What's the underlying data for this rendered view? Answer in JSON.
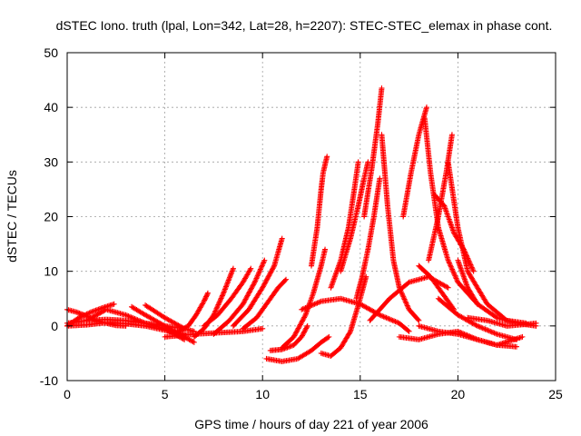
{
  "chart_data": {
    "type": "scatter",
    "title": "dSTEC Iono. truth (lpal, Lon=342, Lat=28, h=2207): STEC-STEC_elemax in phase cont.",
    "xlabel": "GPS time / hours of day 221 of year 2006",
    "ylabel": "dSTEC  / TECUs",
    "xlim": [
      0,
      25
    ],
    "ylim": [
      -10,
      50
    ],
    "x_ticks": [
      0,
      5,
      10,
      15,
      20,
      25
    ],
    "y_ticks": [
      -10,
      0,
      10,
      20,
      30,
      40,
      50
    ],
    "x_tick_labels": [
      "0",
      "5",
      "10",
      "15",
      "20",
      "25"
    ],
    "y_tick_labels": [
      "-10",
      "0",
      "10",
      "20",
      "30",
      "40",
      "50"
    ],
    "grid": true,
    "marker": "+",
    "marker_color": "#ff0000",
    "series": [
      {
        "x": [
          0.0,
          0.5,
          1.0,
          1.5,
          2.0,
          2.5,
          3.0
        ],
        "y": [
          3.0,
          2.5,
          1.8,
          1.0,
          0.5,
          0.1,
          0.0
        ]
      },
      {
        "x": [
          0.0,
          0.6,
          1.2,
          1.8,
          2.4
        ],
        "y": [
          0.0,
          1.5,
          2.5,
          3.3,
          4.0
        ]
      },
      {
        "x": [
          0.0,
          1.0,
          2.0,
          3.0,
          4.0,
          5.0,
          6.0
        ],
        "y": [
          0.0,
          0.2,
          0.6,
          0.4,
          0.0,
          -0.8,
          -1.5
        ]
      },
      {
        "x": [
          1.0,
          2.0,
          3.0,
          4.0,
          5.0,
          6.0
        ],
        "y": [
          1.0,
          3.0,
          2.0,
          0.5,
          -0.5,
          -2.5
        ]
      },
      {
        "x": [
          3.3,
          4.0,
          5.0,
          6.0,
          6.5
        ],
        "y": [
          3.5,
          2.0,
          0.0,
          -2.0,
          -3.0
        ]
      },
      {
        "x": [
          4.0,
          5.0,
          6.0,
          6.5
        ],
        "y": [
          3.8,
          1.5,
          -0.5,
          -1.0
        ]
      },
      {
        "x": [
          0.0,
          1.0,
          2.0,
          3.0,
          4.0,
          5.0,
          6.0
        ],
        "y": [
          0.5,
          1.0,
          1.2,
          1.0,
          0.5,
          0.0,
          -0.5
        ]
      },
      {
        "x": [
          5.7,
          6.2,
          6.6,
          7.0,
          7.2
        ],
        "y": [
          -1.0,
          0.0,
          2.0,
          4.5,
          6.0
        ]
      },
      {
        "x": [
          6.5,
          7.0,
          7.5,
          8.0,
          8.5
        ],
        "y": [
          -2.0,
          -0.5,
          2.0,
          6.0,
          10.5
        ]
      },
      {
        "x": [
          7.0,
          7.7,
          8.4,
          9.0,
          9.4
        ],
        "y": [
          0.0,
          2.0,
          5.0,
          8.0,
          10.5
        ]
      },
      {
        "x": [
          7.5,
          8.3,
          9.0,
          9.6,
          10.1
        ],
        "y": [
          -1.5,
          1.0,
          4.0,
          8.0,
          12.0
        ]
      },
      {
        "x": [
          8.5,
          9.3,
          10.0,
          10.6,
          11.0
        ],
        "y": [
          0.0,
          3.0,
          7.0,
          11.0,
          16.0
        ]
      },
      {
        "x": [
          9.0,
          9.7,
          10.3,
          10.8,
          11.2
        ],
        "y": [
          -0.5,
          1.5,
          4.5,
          7.0,
          8.5
        ]
      },
      {
        "x": [
          5.0,
          6.5,
          8.0,
          9.0,
          10.0
        ],
        "y": [
          -2.0,
          -1.5,
          -1.2,
          -1.0,
          -0.5
        ]
      },
      {
        "x": [
          10.4,
          11.0,
          11.6,
          12.0,
          12.3
        ],
        "y": [
          -4.5,
          -4.3,
          -3.5,
          -2.0,
          0.0
        ]
      },
      {
        "x": [
          10.2,
          11.0,
          11.8,
          12.5,
          13.0,
          13.4
        ],
        "y": [
          -6.0,
          -6.5,
          -6.0,
          -4.5,
          -3.0,
          -2.0
        ]
      },
      {
        "x": [
          11.0,
          11.6,
          12.2,
          12.6,
          13.0,
          13.2
        ],
        "y": [
          -4.0,
          -2.0,
          2.0,
          6.0,
          11.0,
          14.0
        ]
      },
      {
        "x": [
          12.5,
          12.8,
          13.0,
          13.1,
          13.3
        ],
        "y": [
          11.0,
          18.0,
          25.0,
          28.0,
          31.0
        ]
      },
      {
        "x": [
          13.0,
          13.5,
          14.0,
          14.5,
          15.0,
          15.3
        ],
        "y": [
          -5.0,
          -5.5,
          -4.0,
          -1.0,
          5.0,
          9.0
        ]
      },
      {
        "x": [
          13.5,
          14.0,
          14.4,
          14.7,
          14.9
        ],
        "y": [
          7.0,
          12.0,
          18.0,
          25.0,
          30.0
        ]
      },
      {
        "x": [
          14.0,
          14.5,
          14.9,
          15.2,
          15.4
        ],
        "y": [
          10.0,
          16.0,
          22.0,
          27.0,
          30.0
        ]
      },
      {
        "x": [
          14.8,
          15.1,
          15.4,
          15.7,
          16.0
        ],
        "y": [
          5.0,
          9.0,
          14.0,
          20.0,
          27.0
        ]
      },
      {
        "x": [
          15.2,
          15.6,
          15.9,
          16.1
        ],
        "y": [
          20.0,
          29.0,
          37.0,
          43.5
        ]
      },
      {
        "x": [
          16.1,
          16.4,
          16.7,
          17.0,
          17.5,
          18.0
        ],
        "y": [
          35.0,
          22.0,
          12.0,
          7.0,
          3.0,
          1.0
        ]
      },
      {
        "x": [
          12.0,
          13.0,
          14.0,
          15.0,
          16.0,
          17.0,
          17.5
        ],
        "y": [
          3.0,
          4.5,
          5.0,
          4.0,
          2.0,
          0.5,
          -1.0
        ]
      },
      {
        "x": [
          15.5,
          16.5,
          17.5,
          18.5,
          19.5
        ],
        "y": [
          1.0,
          5.0,
          8.0,
          9.0,
          7.0
        ]
      },
      {
        "x": [
          17.2,
          17.6,
          18.0,
          18.4
        ],
        "y": [
          20.0,
          28.0,
          35.0,
          40.0
        ]
      },
      {
        "x": [
          18.3,
          18.6,
          19.0,
          19.5,
          20.0,
          21.0
        ],
        "y": [
          38.0,
          28.0,
          18.0,
          12.0,
          8.0,
          4.0
        ]
      },
      {
        "x": [
          18.5,
          19.0,
          19.4,
          19.7
        ],
        "y": [
          12.0,
          20.0,
          28.0,
          35.0
        ]
      },
      {
        "x": [
          19.5,
          20.0,
          20.5,
          21.5,
          22.5,
          23.5
        ],
        "y": [
          30.0,
          18.0,
          10.0,
          4.0,
          1.0,
          0.5
        ]
      },
      {
        "x": [
          18.8,
          19.3,
          19.8,
          20.3,
          20.8
        ],
        "y": [
          24.0,
          22.0,
          17.0,
          14.0,
          10.0
        ]
      },
      {
        "x": [
          20.0,
          20.5,
          21.0,
          22.0,
          23.0,
          24.0
        ],
        "y": [
          12.0,
          7.0,
          4.0,
          1.5,
          0.5,
          0.0
        ]
      },
      {
        "x": [
          19.0,
          20.0,
          21.0,
          22.0,
          23.0
        ],
        "y": [
          5.0,
          2.0,
          0.0,
          -1.5,
          -2.5
        ]
      },
      {
        "x": [
          18.0,
          19.0,
          20.0,
          21.0,
          22.0,
          23.0
        ],
        "y": [
          0.0,
          -1.0,
          -1.5,
          -2.5,
          -3.5,
          -3.8
        ]
      },
      {
        "x": [
          17.0,
          18.0,
          19.0,
          20.0,
          21.0,
          22.0,
          23.3
        ],
        "y": [
          -2.0,
          -2.5,
          -1.5,
          -1.0,
          -2.5,
          -3.5,
          -2.0
        ]
      },
      {
        "x": [
          18.0,
          18.6,
          19.2,
          19.8
        ],
        "y": [
          11.0,
          9.0,
          6.0,
          3.0
        ]
      },
      {
        "x": [
          20.5,
          21.5,
          22.5,
          23.5,
          24.0
        ],
        "y": [
          1.5,
          1.0,
          0.0,
          0.3,
          0.5
        ]
      }
    ]
  }
}
